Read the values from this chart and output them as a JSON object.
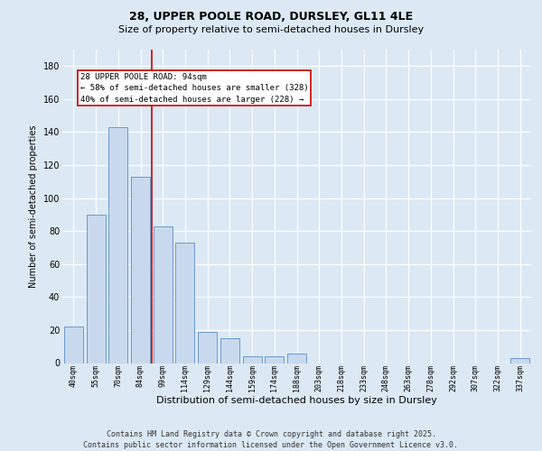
{
  "title_line1": "28, UPPER POOLE ROAD, DURSLEY, GL11 4LE",
  "title_line2": "Size of property relative to semi-detached houses in Dursley",
  "xlabel": "Distribution of semi-detached houses by size in Dursley",
  "ylabel": "Number of semi-detached properties",
  "categories": [
    "40sqm",
    "55sqm",
    "70sqm",
    "84sqm",
    "99sqm",
    "114sqm",
    "129sqm",
    "144sqm",
    "159sqm",
    "174sqm",
    "188sqm",
    "203sqm",
    "218sqm",
    "233sqm",
    "248sqm",
    "263sqm",
    "278sqm",
    "292sqm",
    "307sqm",
    "322sqm",
    "337sqm"
  ],
  "values": [
    22,
    90,
    143,
    113,
    83,
    73,
    19,
    15,
    4,
    4,
    6,
    0,
    0,
    0,
    0,
    0,
    0,
    0,
    0,
    0,
    3
  ],
  "bar_color": "#c9d9ed",
  "bar_edge_color": "#5b8ec4",
  "annotation_text": "28 UPPER POOLE ROAD: 94sqm\n← 58% of semi-detached houses are smaller (328)\n40% of semi-detached houses are larger (228) →",
  "annotation_box_color": "#ffffff",
  "annotation_box_edge": "#cc0000",
  "vline_color": "#cc0000",
  "vline_x": 3.5,
  "ylim": [
    0,
    190
  ],
  "yticks": [
    0,
    20,
    40,
    60,
    80,
    100,
    120,
    140,
    160,
    180
  ],
  "background_color": "#dce9f5",
  "plot_bg_color": "#dce9f5",
  "footer_text": "Contains HM Land Registry data © Crown copyright and database right 2025.\nContains public sector information licensed under the Open Government Licence v3.0.",
  "title_fontsize": 9,
  "subtitle_fontsize": 8,
  "footer_fontsize": 6,
  "grid_color": "#ffffff",
  "ylabel_fontsize": 7,
  "xlabel_fontsize": 8,
  "ytick_fontsize": 7,
  "xtick_fontsize": 6,
  "annot_fontsize": 6.5
}
